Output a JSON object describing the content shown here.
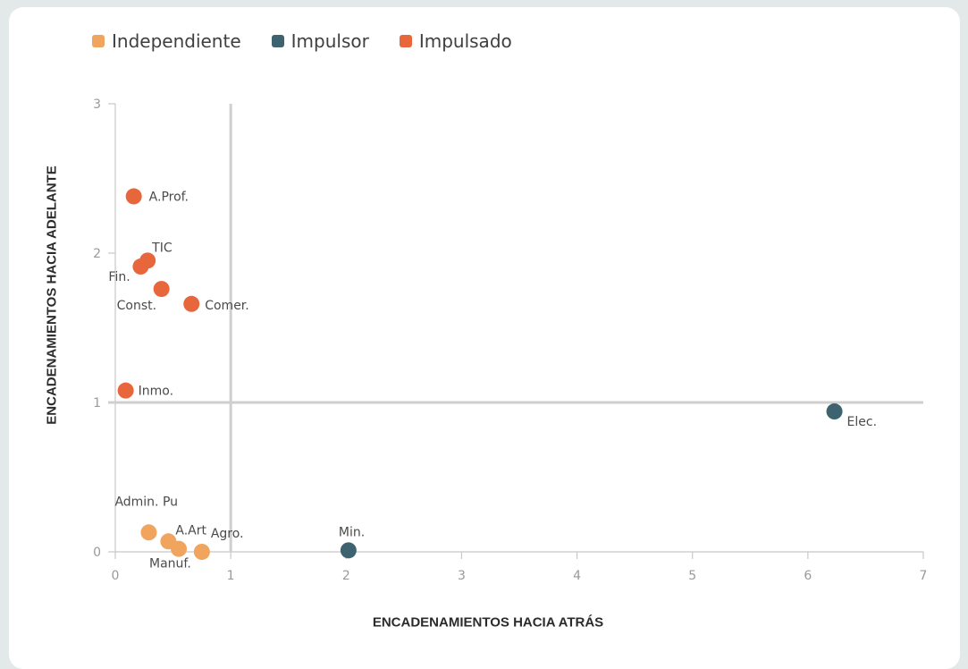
{
  "chart_data": {
    "type": "scatter",
    "xlabel": "ENCADENAMIENTOS HACIA ATRÁS",
    "ylabel": "ENCADENAMIENTOS HACIA ADELANTE",
    "xlim": [
      0,
      7
    ],
    "ylim": [
      0,
      3
    ],
    "x_ticks": [
      "0",
      "1",
      "2",
      "3",
      "4",
      "5",
      "6",
      "7"
    ],
    "y_ticks": [
      "0",
      "1",
      "2",
      "3"
    ],
    "reference_lines": {
      "x": 1,
      "y": 1
    },
    "legend_position": "top-left",
    "series": [
      {
        "name": "Independiente",
        "color": "#f0a45d",
        "points": [
          {
            "label": "Admin. Pu",
            "x": 0.29,
            "y": 0.13
          },
          {
            "label": "A.Art",
            "x": 0.46,
            "y": 0.07
          },
          {
            "label": "Manuf.",
            "x": 0.55,
            "y": 0.02
          },
          {
            "label": "Agro.",
            "x": 0.75,
            "y": 0.0
          }
        ]
      },
      {
        "name": "Impulsor",
        "color": "#3e6370",
        "points": [
          {
            "label": "Min.",
            "x": 2.02,
            "y": 0.01
          },
          {
            "label": "Elec.",
            "x": 6.23,
            "y": 0.94
          }
        ]
      },
      {
        "name": "Impulsado",
        "color": "#e8663c",
        "points": [
          {
            "label": "A.Prof.",
            "x": 0.16,
            "y": 2.38
          },
          {
            "label": "TIC",
            "x": 0.28,
            "y": 1.95
          },
          {
            "label": "Fin.",
            "x": 0.22,
            "y": 1.91
          },
          {
            "label": "Const.",
            "x": 0.4,
            "y": 1.76
          },
          {
            "label": "Comer.",
            "x": 0.66,
            "y": 1.66
          },
          {
            "label": "Inmo.",
            "x": 0.09,
            "y": 1.08
          }
        ]
      }
    ]
  }
}
